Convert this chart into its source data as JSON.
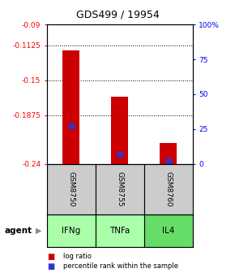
{
  "title": "GDS499 / 19954",
  "samples": [
    "GSM8750",
    "GSM8755",
    "GSM8760"
  ],
  "agents": [
    "IFNg",
    "TNFa",
    "IL4"
  ],
  "log_ratios": [
    -0.118,
    -0.168,
    -0.218
  ],
  "percentile_ranks": [
    27,
    7,
    2
  ],
  "bar_bottom": -0.24,
  "ylim_left": [
    -0.24,
    -0.09
  ],
  "yticks_left": [
    -0.24,
    -0.1875,
    -0.15,
    -0.1125,
    -0.09
  ],
  "ytick_labels_left": [
    "-0.24",
    "-0.1875",
    "-0.15",
    "-0.1125",
    "-0.09"
  ],
  "ylim_right": [
    0,
    100
  ],
  "yticks_right": [
    0,
    25,
    50,
    75,
    100
  ],
  "ytick_labels_right": [
    "0",
    "25",
    "50",
    "75",
    "100%"
  ],
  "bar_color": "#cc0000",
  "percentile_color": "#3333cc",
  "agent_color_light": "#aaffaa",
  "agent_color_darker": "#66dd66",
  "sample_box_color": "#cccccc",
  "legend_items": [
    "log ratio",
    "percentile rank within the sample"
  ],
  "agent_label": "agent",
  "bar_width": 0.35,
  "title_fontsize": 9
}
